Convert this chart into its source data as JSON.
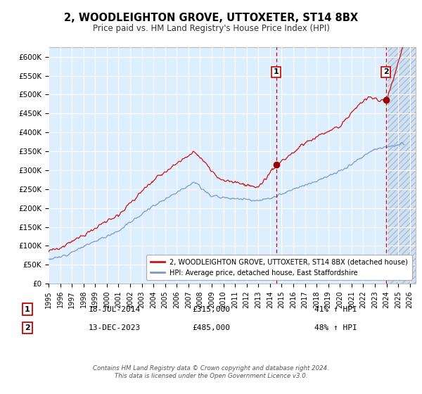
{
  "title": "2, WOODLEIGHTON GROVE, UTTOXETER, ST14 8BX",
  "subtitle": "Price paid vs. HM Land Registry's House Price Index (HPI)",
  "ylim": [
    0,
    625000
  ],
  "yticks": [
    0,
    50000,
    100000,
    150000,
    200000,
    250000,
    300000,
    350000,
    400000,
    450000,
    500000,
    550000,
    600000
  ],
  "ytick_labels": [
    "£0",
    "£50K",
    "£100K",
    "£150K",
    "£200K",
    "£250K",
    "£300K",
    "£350K",
    "£400K",
    "£450K",
    "£500K",
    "£550K",
    "£600K"
  ],
  "sale1_date": 2014.54,
  "sale1_price": 315000,
  "sale1_label": "1",
  "sale2_date": 2023.95,
  "sale2_price": 485000,
  "sale2_label": "2",
  "hpi_line_color": "#7799cc",
  "price_line_color": "#cc1111",
  "vline_color": "#cc0000",
  "annotation_box_color": "#cc0000",
  "background_color": "#ddeeff",
  "legend_label1": "2, WOODLEIGHTON GROVE, UTTOXETER, ST14 8BX (detached house)",
  "legend_label2": "HPI: Average price, detached house, East Staffordshire",
  "table_label1": "18-JUL-2014",
  "table_price1": "£315,000",
  "table_pct1": "41% ↑ HPI",
  "table_label2": "13-DEC-2023",
  "table_price2": "£485,000",
  "table_pct2": "48% ↑ HPI",
  "footer": "Contains HM Land Registry data © Crown copyright and database right 2024.\nThis data is licensed under the Open Government Licence v3.0.",
  "xlim_start": 1995.0,
  "xlim_end": 2026.5
}
